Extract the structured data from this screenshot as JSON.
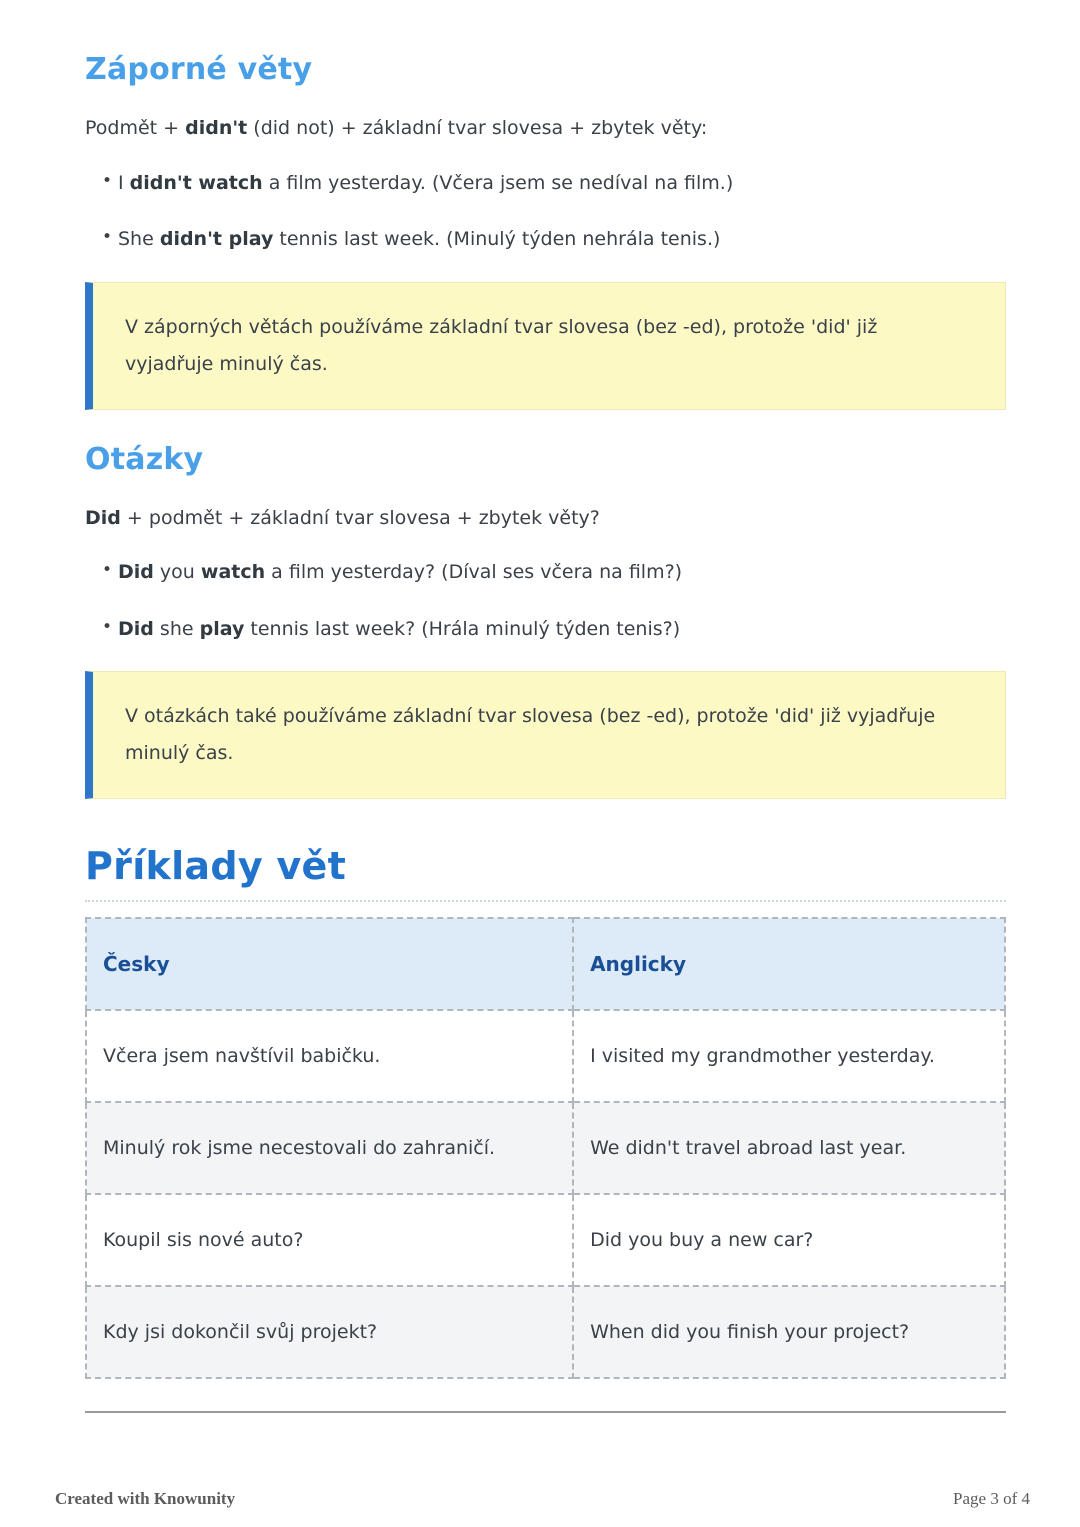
{
  "colors": {
    "heading_blue": "#49a0e8",
    "title_blue": "#2173cb",
    "note_background": "#fcf9c5",
    "note_border": "#2d76c9",
    "table_header_background": "#ddeaf8",
    "table_header_text": "#1a4f96",
    "alt_row_background": "#f2f4f5",
    "body_text": "#3a4149",
    "footer_text": "#5c5c5c"
  },
  "sections": [
    {
      "heading": "Záporné věty",
      "formula": [
        {
          "t": "Podmět + "
        },
        {
          "t": "didn't",
          "b": true
        },
        {
          "t": " (did not) + základní tvar slovesa + zbytek věty:"
        }
      ],
      "bullets": [
        [
          {
            "t": "I "
          },
          {
            "t": "didn't watch",
            "b": true
          },
          {
            "t": " a film yesterday. (Včera jsem se nedíval na film.)"
          }
        ],
        [
          {
            "t": "She "
          },
          {
            "t": "didn't play",
            "b": true
          },
          {
            "t": " tennis last week. (Minulý týden nehrála tenis.)"
          }
        ]
      ],
      "note": "V záporných větách používáme základní tvar slovesa (bez -ed), protože 'did' již vyjadřuje minulý čas."
    },
    {
      "heading": "Otázky",
      "formula": [
        {
          "t": "Did",
          "b": true
        },
        {
          "t": " + podmět + základní tvar slovesa + zbytek věty?"
        }
      ],
      "bullets": [
        [
          {
            "t": "Did",
            "b": true
          },
          {
            "t": " you "
          },
          {
            "t": "watch",
            "b": true
          },
          {
            "t": " a film yesterday? (Díval ses včera na film?)"
          }
        ],
        [
          {
            "t": "Did",
            "b": true
          },
          {
            "t": " she "
          },
          {
            "t": "play",
            "b": true
          },
          {
            "t": " tennis last week? (Hrála minulý týden tenis?)"
          }
        ]
      ],
      "note": "V otázkách také používáme základní tvar slovesa (bez -ed), protože 'did' již vyjadřuje minulý čas."
    }
  ],
  "examples": {
    "heading": "Příklady vět",
    "table": {
      "headers": [
        "Česky",
        "Anglicky"
      ],
      "rows": [
        [
          "Včera jsem navštívil babičku.",
          "I visited my grandmother yesterday."
        ],
        [
          "Minulý rok jsme necestovali do zahraničí.",
          "We didn't travel abroad last year."
        ],
        [
          "Koupil sis nové auto?",
          "Did you buy a new car?"
        ],
        [
          "Kdy jsi dokončil svůj projekt?",
          "When did you finish your project?"
        ]
      ]
    }
  },
  "footer": {
    "left": "Created with Knowunity",
    "right": "Page 3 of 4"
  }
}
